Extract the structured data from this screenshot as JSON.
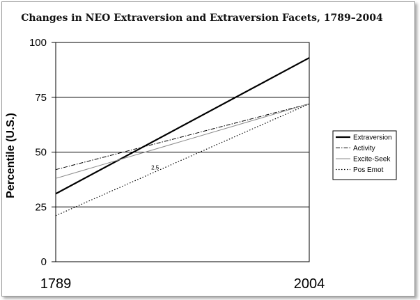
{
  "chart_data": {
    "type": "line",
    "title": "Changes in NEO Extraversion and Extraversion Facets, 1789–2004",
    "xlabel": "",
    "ylabel": "Percentile (U.S.)",
    "x": [
      1789,
      2004
    ],
    "x_tick_labels": [
      "1789",
      "2004"
    ],
    "ylim": [
      0,
      100
    ],
    "y_ticks": [
      0,
      25,
      50,
      75,
      100
    ],
    "y_tick_labels": [
      "0",
      "25",
      "50",
      "75",
      "100"
    ],
    "grid": "horizontal",
    "legend_position": "right",
    "series": [
      {
        "name": "Extraversion",
        "values": [
          31,
          93
        ],
        "style": "solid-thick",
        "color": "#000000"
      },
      {
        "name": "Activity",
        "values": [
          42,
          72
        ],
        "style": "dash-dot",
        "color": "#000000"
      },
      {
        "name": "Excite-Seek",
        "values": [
          38,
          72
        ],
        "style": "solid-thin",
        "color": "#8a8a8a"
      },
      {
        "name": "Pos Emot",
        "values": [
          21,
          72
        ],
        "style": "dotted",
        "color": "#000000"
      }
    ],
    "annotations": [
      {
        "text": "2.5",
        "x": 1870,
        "y": 43
      }
    ]
  }
}
